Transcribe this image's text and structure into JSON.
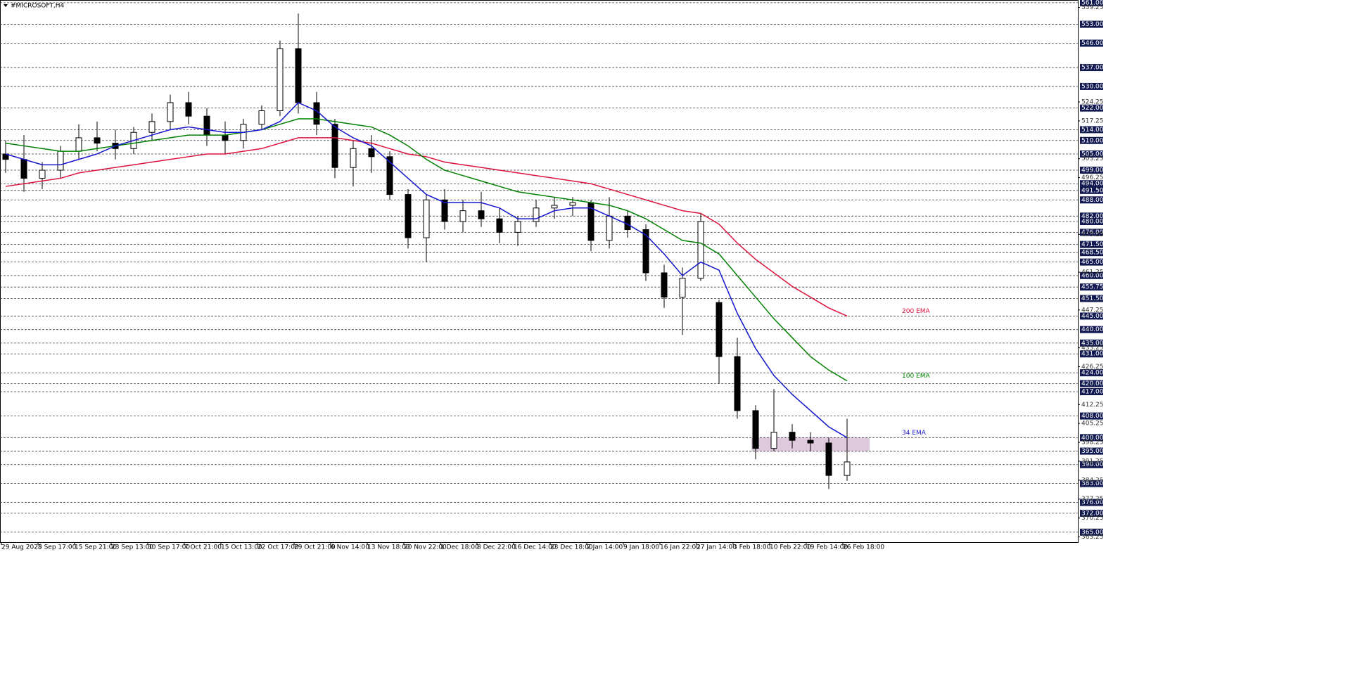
{
  "chart_data": {
    "type": "candlestick",
    "title": "#MICROSOFT,H4",
    "ylim": [
      361.3,
      562
    ],
    "categories": [
      "29 Aug 2025",
      null,
      "8 Sep 17:00",
      null,
      "15 Sep 21:00",
      null,
      "23 Sep 13:00",
      null,
      "30 Sep 17:00",
      null,
      "7 Oct 21:00",
      null,
      "15 Oct 13:00",
      null,
      "22 Oct 17:00",
      null,
      "29 Oct 21:00",
      null,
      "6 Nov 14:00",
      null,
      "13 Nov 18:00",
      null,
      "20 Nov 22:00",
      null,
      "1 Dec 18:00",
      null,
      "8 Dec 22:00",
      null,
      "16 Dec 14:00",
      null,
      "23 Dec 18:00",
      null,
      "2 Jan 14:00",
      null,
      "9 Jan 18:00",
      null,
      "16 Jan 22:00",
      null,
      "27 Jan 14:00",
      null,
      "3 Feb 18:00",
      null,
      "10 Feb 22:00",
      null,
      "19 Feb 14:00",
      null,
      "26 Feb 18:00"
    ],
    "ohlc": [
      [
        505,
        510,
        498,
        503
      ],
      [
        503,
        512,
        491,
        496
      ],
      [
        496,
        502,
        492,
        499
      ],
      [
        499,
        508,
        496,
        506
      ],
      [
        506,
        516,
        503,
        511
      ],
      [
        511,
        517,
        506,
        509
      ],
      [
        509,
        514,
        503,
        507
      ],
      [
        507,
        515,
        505,
        513
      ],
      [
        513,
        520,
        510,
        517
      ],
      [
        517,
        527,
        514,
        524
      ],
      [
        524,
        528,
        516,
        519
      ],
      [
        519,
        522,
        508,
        512
      ],
      [
        512,
        517,
        505,
        510
      ],
      [
        510,
        518,
        507,
        516
      ],
      [
        516,
        523,
        514,
        521
      ],
      [
        521,
        547,
        519,
        544
      ],
      [
        544,
        557,
        520,
        524
      ],
      [
        524,
        528,
        512,
        516
      ],
      [
        516,
        518,
        496,
        500
      ],
      [
        500,
        510,
        493,
        507
      ],
      [
        507,
        512,
        498,
        504
      ],
      [
        504,
        506,
        488,
        490
      ],
      [
        490,
        492,
        470,
        474
      ],
      [
        474,
        490,
        465,
        488
      ],
      [
        488,
        492,
        477,
        480
      ],
      [
        480,
        488,
        476,
        484
      ],
      [
        484,
        491,
        478,
        481
      ],
      [
        481,
        485,
        472,
        476
      ],
      [
        476,
        482,
        471,
        480
      ],
      [
        480,
        488,
        478,
        485
      ],
      [
        485,
        489,
        481,
        486
      ],
      [
        486,
        489,
        482,
        487
      ],
      [
        487,
        488,
        469,
        473
      ],
      [
        473,
        489,
        470,
        482
      ],
      [
        482,
        484,
        474,
        477
      ],
      [
        477,
        479,
        458,
        461
      ],
      [
        461,
        464,
        448,
        452
      ],
      [
        452,
        463,
        438,
        459
      ],
      [
        459,
        483,
        458,
        480
      ],
      [
        450,
        451,
        420,
        430
      ],
      [
        430,
        437,
        407,
        410
      ],
      [
        410,
        412,
        392,
        396
      ],
      [
        396,
        418,
        395,
        402
      ],
      [
        402,
        405,
        396,
        399
      ],
      [
        399,
        402,
        395,
        398
      ],
      [
        398,
        400,
        381,
        386
      ],
      [
        386,
        407,
        384,
        391
      ]
    ],
    "series": [
      {
        "name": "200 EMA",
        "color": "#dc143c",
        "values": [
          493,
          494,
          495,
          496,
          498,
          499,
          500,
          501,
          502,
          503,
          504,
          505,
          505,
          506,
          507,
          509,
          511,
          511,
          511,
          510,
          509,
          507,
          505,
          504,
          502,
          501,
          500,
          499,
          498,
          497,
          496,
          495,
          494,
          492,
          490,
          488,
          486,
          484,
          483,
          479,
          472,
          466,
          461,
          456,
          452,
          448,
          445
        ]
      },
      {
        "name": "100 EMA",
        "color": "#008000",
        "values": [
          509,
          508,
          507,
          506,
          506,
          507,
          508,
          509,
          510,
          511,
          512,
          512,
          512,
          513,
          514,
          516,
          518,
          518,
          517,
          516,
          515,
          512,
          508,
          503,
          499,
          497,
          495,
          493,
          491,
          490,
          489,
          488,
          487,
          486,
          484,
          481,
          477,
          473,
          472,
          468,
          460,
          452,
          444,
          437,
          430,
          425,
          421
        ]
      },
      {
        "name": "34 EMA",
        "color": "#1515d0",
        "values": [
          505,
          503,
          501,
          501,
          503,
          505,
          508,
          510,
          512,
          514,
          515,
          514,
          513,
          513,
          514,
          517,
          524,
          521,
          515,
          511,
          508,
          502,
          496,
          490,
          487,
          487,
          487,
          485,
          481,
          481,
          484,
          485,
          485,
          482,
          479,
          475,
          468,
          460,
          465,
          462,
          446,
          433,
          423,
          416,
          410,
          404,
          400
        ]
      }
    ],
    "zone": {
      "range": [
        395,
        400
      ],
      "color": "#d8bfd8"
    },
    "levels": [
      {
        "value": 561,
        "label": "561.00"
      },
      {
        "value": 553,
        "label": "553.00"
      },
      {
        "value": 546,
        "label": "546.00"
      },
      {
        "value": 537,
        "label": "537.00"
      },
      {
        "value": 530,
        "label": "530.00"
      },
      {
        "value": 522,
        "label": "522.00"
      },
      {
        "value": 514,
        "label": "514.00"
      },
      {
        "value": 510,
        "label": "510.00"
      },
      {
        "value": 505,
        "label": "505.00"
      },
      {
        "value": 499,
        "label": "499.00"
      },
      {
        "value": 494,
        "label": "494.00"
      },
      {
        "value": 491.5,
        "label": "491.50"
      },
      {
        "value": 488,
        "label": "488.00"
      },
      {
        "value": 482,
        "label": "482.00"
      },
      {
        "value": 480,
        "label": "480.00"
      },
      {
        "value": 476,
        "label": "476.00"
      },
      {
        "value": 471.5,
        "label": "471.50"
      },
      {
        "value": 468.5,
        "label": "468.50"
      },
      {
        "value": 465,
        "label": "465.00"
      },
      {
        "value": 460,
        "label": "460.00"
      },
      {
        "value": 455.75,
        "label": "455.75"
      },
      {
        "value": 451.5,
        "label": "451.50"
      },
      {
        "value": 445,
        "label": "445.00"
      },
      {
        "value": 440,
        "label": "440.00"
      },
      {
        "value": 435,
        "label": "435.00"
      },
      {
        "value": 431,
        "label": "431.00"
      },
      {
        "value": 424,
        "label": "424.00"
      },
      {
        "value": 420,
        "label": "420.00"
      },
      {
        "value": 417,
        "label": "417.00"
      },
      {
        "value": 408,
        "label": "408.00"
      },
      {
        "value": 400,
        "label": "400.00"
      },
      {
        "value": 395,
        "label": "395.00"
      },
      {
        "value": 390,
        "label": "390.00"
      },
      {
        "value": 383,
        "label": "383.00"
      },
      {
        "value": 376,
        "label": "376.00"
      },
      {
        "value": 372,
        "label": "372.00"
      },
      {
        "value": 365,
        "label": "365.00"
      }
    ],
    "yticks": [
      559.25,
      524.25,
      517.25,
      503.25,
      496.25,
      475.25,
      461.25,
      447.25,
      433.25,
      426.25,
      412.25,
      405.25,
      398.25,
      391.25,
      384.25,
      377.25,
      370.25,
      363.25
    ]
  }
}
